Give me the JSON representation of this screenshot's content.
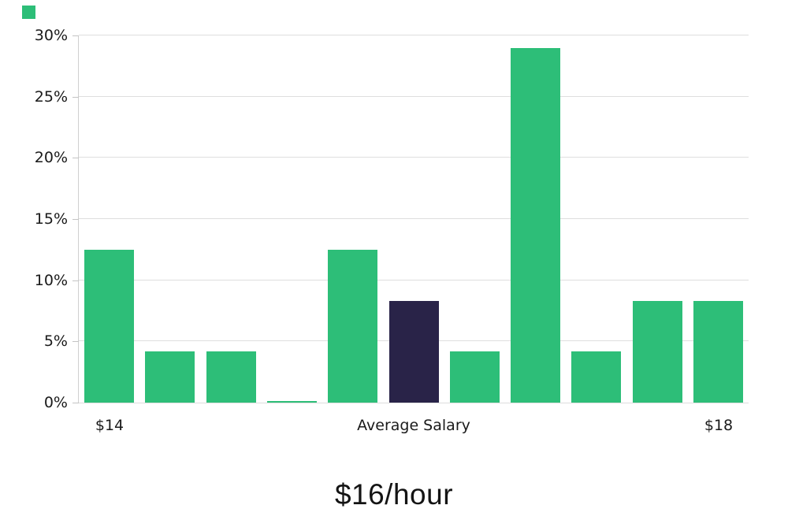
{
  "corner_marker": {
    "color": "#2dbe78"
  },
  "chart_data": {
    "type": "bar",
    "title": "$16/hour",
    "xlabel": "",
    "ylabel": "",
    "ylim": [
      0,
      30
    ],
    "y_unit": "%",
    "y_ticks": [
      "0%",
      "5%",
      "10%",
      "15%",
      "20%",
      "25%",
      "30%"
    ],
    "grid": "horizontal-only",
    "legend": "none",
    "values": [
      12.5,
      4.17,
      4.17,
      0.1,
      12.5,
      8.33,
      4.17,
      29.0,
      4.17,
      8.33,
      8.33
    ],
    "highlighted_bar_index": 5,
    "bar_color": "#2dbe78",
    "highlight_color": "#292348",
    "x_tick_labels": [
      {
        "text": "$14",
        "bar_index": 0
      },
      {
        "text": "Average Salary",
        "bar_index": 5
      },
      {
        "text": "$18",
        "bar_index": 10
      }
    ]
  }
}
